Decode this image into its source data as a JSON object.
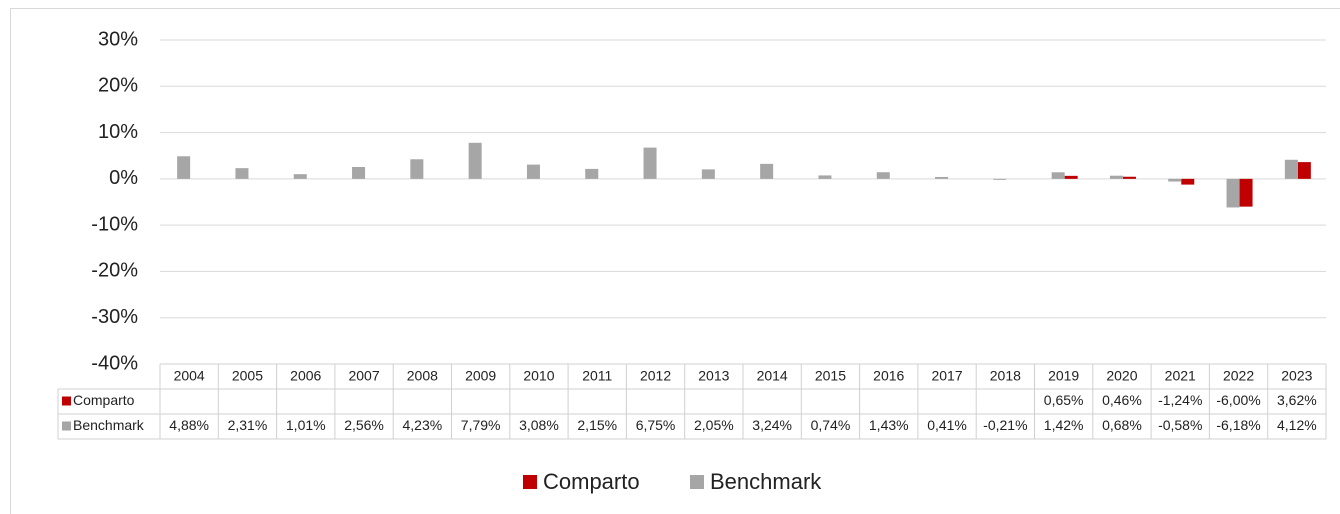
{
  "chart_data": {
    "type": "bar",
    "categories": [
      "2004",
      "2005",
      "2006",
      "2007",
      "2008",
      "2009",
      "2010",
      "2011",
      "2012",
      "2013",
      "2014",
      "2015",
      "2016",
      "2017",
      "2018",
      "2019",
      "2020",
      "2021",
      "2022",
      "2023"
    ],
    "series": [
      {
        "name": "Comparto",
        "color": "#c00000",
        "values": [
          null,
          null,
          null,
          null,
          null,
          null,
          null,
          null,
          null,
          null,
          null,
          null,
          null,
          null,
          null,
          0.65,
          0.46,
          -1.24,
          -6.0,
          3.62
        ],
        "value_labels": [
          null,
          null,
          null,
          null,
          null,
          null,
          null,
          null,
          null,
          null,
          null,
          null,
          null,
          null,
          null,
          "0,65%",
          "0,46%",
          "-1,24%",
          "-6,00%",
          "3,62%"
        ]
      },
      {
        "name": "Benchmark",
        "color": "#a6a6a6",
        "values": [
          4.88,
          2.31,
          1.01,
          2.56,
          4.23,
          7.79,
          3.08,
          2.15,
          6.75,
          2.05,
          3.24,
          0.74,
          1.43,
          0.41,
          -0.21,
          1.42,
          0.68,
          -0.58,
          -6.18,
          4.12
        ],
        "value_labels": [
          "4,88%",
          "2,31%",
          "1,01%",
          "2,56%",
          "4,23%",
          "7,79%",
          "3,08%",
          "2,15%",
          "6,75%",
          "2,05%",
          "3,24%",
          "0,74%",
          "1,43%",
          "0,41%",
          "-0,21%",
          "1,42%",
          "0,68%",
          "-0,58%",
          "-6,18%",
          "4,12%"
        ]
      }
    ],
    "ylim": [
      -40,
      30
    ],
    "yticks": [
      {
        "value": -40,
        "label": "-40%"
      },
      {
        "value": -30,
        "label": "-30%"
      },
      {
        "value": -20,
        "label": "-20%"
      },
      {
        "value": -10,
        "label": "-10%"
      },
      {
        "value": 0,
        "label": "0%"
      },
      {
        "value": 10,
        "label": "10%"
      },
      {
        "value": 20,
        "label": "20%"
      },
      {
        "value": 30,
        "label": "30%"
      }
    ],
    "grid": true,
    "legend": "bottom"
  }
}
